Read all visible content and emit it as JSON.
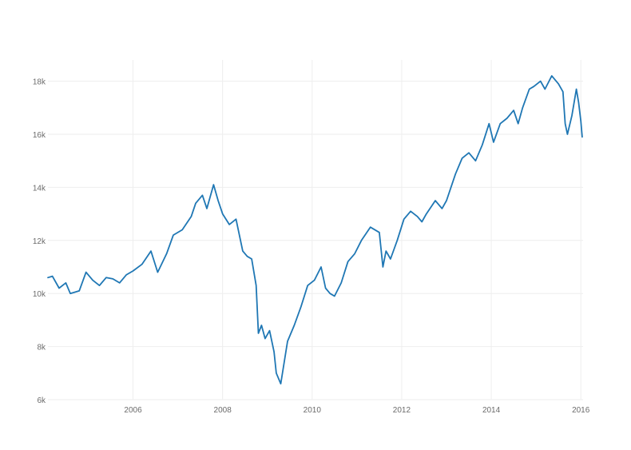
{
  "chart_data": {
    "type": "line",
    "title": "",
    "xlabel": "",
    "ylabel": "",
    "x_is_time": true,
    "xlim": [
      2004.1,
      2016.05
    ],
    "ylim": [
      6000,
      18800
    ],
    "x_ticks": [
      {
        "value": 2006,
        "label": "2006"
      },
      {
        "value": 2008,
        "label": "2008"
      },
      {
        "value": 2010,
        "label": "2010"
      },
      {
        "value": 2012,
        "label": "2012"
      },
      {
        "value": 2014,
        "label": "2014"
      },
      {
        "value": 2016,
        "label": "2016"
      }
    ],
    "y_ticks": [
      {
        "value": 6000,
        "label": "6k"
      },
      {
        "value": 8000,
        "label": "8k"
      },
      {
        "value": 10000,
        "label": "10k"
      },
      {
        "value": 12000,
        "label": "12k"
      },
      {
        "value": 14000,
        "label": "14k"
      },
      {
        "value": 16000,
        "label": "16k"
      },
      {
        "value": 18000,
        "label": "18k"
      }
    ],
    "grid": true,
    "legend": "none",
    "series": [
      {
        "color": "#1f77b4",
        "x": [
          2004.1,
          2004.2,
          2004.35,
          2004.5,
          2004.6,
          2004.8,
          2004.95,
          2005.1,
          2005.25,
          2005.4,
          2005.55,
          2005.7,
          2005.85,
          2006.0,
          2006.2,
          2006.4,
          2006.55,
          2006.75,
          2006.9,
          2007.1,
          2007.3,
          2007.4,
          2007.55,
          2007.65,
          2007.8,
          2007.9,
          2008.0,
          2008.15,
          2008.3,
          2008.45,
          2008.55,
          2008.65,
          2008.75,
          2008.8,
          2008.87,
          2008.95,
          2009.05,
          2009.15,
          2009.2,
          2009.3,
          2009.45,
          2009.6,
          2009.75,
          2009.9,
          2010.05,
          2010.2,
          2010.3,
          2010.4,
          2010.5,
          2010.65,
          2010.8,
          2010.95,
          2011.1,
          2011.3,
          2011.5,
          2011.58,
          2011.65,
          2011.75,
          2011.9,
          2012.05,
          2012.2,
          2012.35,
          2012.45,
          2012.55,
          2012.75,
          2012.9,
          2013.0,
          2013.2,
          2013.35,
          2013.5,
          2013.65,
          2013.8,
          2013.95,
          2014.05,
          2014.2,
          2014.35,
          2014.5,
          2014.6,
          2014.7,
          2014.85,
          2014.95,
          2015.1,
          2015.2,
          2015.35,
          2015.5,
          2015.6,
          2015.65,
          2015.7,
          2015.8,
          2015.9,
          2015.95,
          2016.0,
          2016.03
        ],
        "values": [
          10600,
          10650,
          10200,
          10400,
          10000,
          10100,
          10800,
          10500,
          10300,
          10600,
          10550,
          10400,
          10700,
          10850,
          11100,
          11600,
          10800,
          11500,
          12200,
          12400,
          12900,
          13400,
          13700,
          13200,
          14100,
          13500,
          13000,
          12600,
          12800,
          11600,
          11400,
          11300,
          10300,
          8500,
          8800,
          8300,
          8600,
          7800,
          7000,
          6600,
          8200,
          8800,
          9500,
          10300,
          10500,
          11000,
          10200,
          10000,
          9900,
          10400,
          11200,
          11500,
          12000,
          12500,
          12300,
          11000,
          11600,
          11300,
          12000,
          12800,
          13100,
          12900,
          12700,
          13000,
          13500,
          13200,
          13500,
          14500,
          15100,
          15300,
          15000,
          15600,
          16400,
          15700,
          16400,
          16600,
          16900,
          16400,
          17000,
          17700,
          17800,
          18000,
          17700,
          18200,
          17900,
          17600,
          16400,
          16000,
          16700,
          17700,
          17200,
          16500,
          15900
        ]
      }
    ]
  }
}
